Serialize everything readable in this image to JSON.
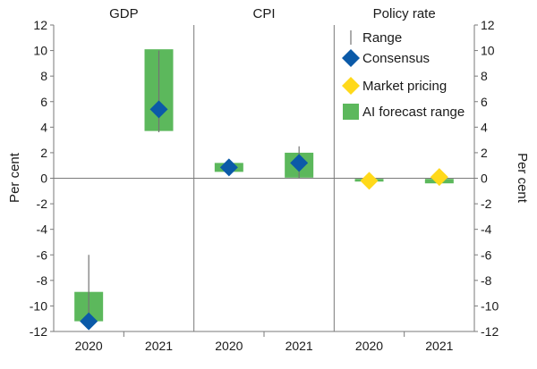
{
  "chart_data": {
    "type": "bar",
    "panels": [
      {
        "title": "GDP",
        "categories": [
          "2020",
          "2021"
        ],
        "range": [
          [
            -11.4,
            -6.0
          ],
          [
            3.6,
            10.0
          ]
        ],
        "consensus": [
          -11.2,
          5.4
        ],
        "market_pricing": [
          null,
          null
        ],
        "ai_forecast_range": [
          [
            -11.2,
            -8.9
          ],
          [
            3.7,
            10.1
          ]
        ]
      },
      {
        "title": "CPI",
        "categories": [
          "2020",
          "2021"
        ],
        "range": [
          [
            0.5,
            1.2
          ],
          [
            0.0,
            2.5
          ]
        ],
        "consensus": [
          0.85,
          1.2
        ],
        "market_pricing": [
          null,
          null
        ],
        "ai_forecast_range": [
          [
            0.5,
            1.2
          ],
          [
            0.05,
            2.0
          ]
        ]
      },
      {
        "title": "Policy rate",
        "categories": [
          "2020",
          "2021"
        ],
        "range": [
          [
            -0.1,
            -0.1
          ],
          [
            -0.1,
            0.15
          ]
        ],
        "consensus": [
          null,
          null
        ],
        "market_pricing": [
          -0.2,
          0.1
        ],
        "ai_forecast_range": [
          [
            -0.1,
            -0.05
          ],
          [
            -0.4,
            -0.05
          ]
        ]
      }
    ],
    "ylabel": "Per cent",
    "ylim": [
      -12,
      12
    ],
    "yticks": [
      -12,
      -10,
      -8,
      -6,
      -4,
      -2,
      0,
      2,
      4,
      6,
      8,
      10,
      12
    ],
    "legend": {
      "placement": "top-right",
      "items": [
        {
          "key": "range",
          "label": "Range"
        },
        {
          "key": "consensus",
          "label": "Consensus"
        },
        {
          "key": "market_pricing",
          "label": "Market pricing"
        },
        {
          "key": "ai_forecast_range",
          "label": "AI forecast range"
        }
      ]
    },
    "colors": {
      "range": "#737373",
      "consensus": "#0b5aa8",
      "market_pricing": "#ffd91a",
      "ai_forecast_range": "#5cb85c",
      "axis": "#7a7a7a"
    }
  }
}
